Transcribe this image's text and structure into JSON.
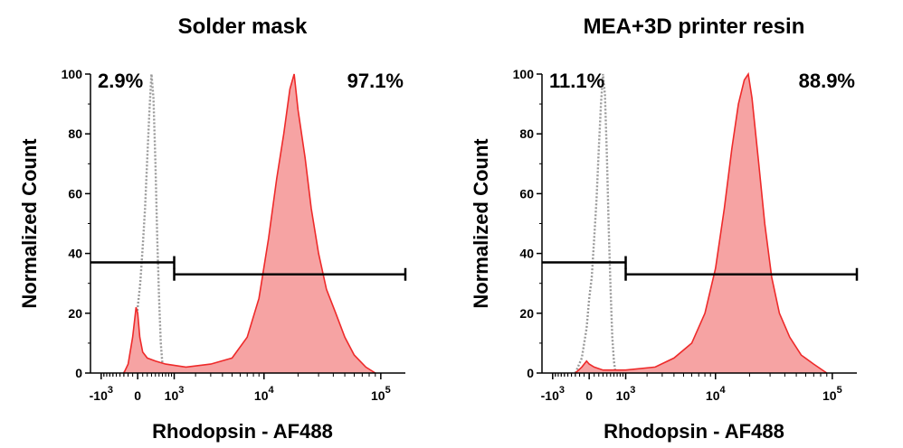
{
  "chart_data": [
    {
      "type": "area",
      "title": "Solder mask",
      "xlabel": "Rhodopsin - AF488",
      "ylabel": "Normalized Count",
      "x_scale": "biexponential",
      "ylim": [
        0,
        100
      ],
      "yticks": [
        "0",
        "20",
        "40",
        "60",
        "80",
        "100"
      ],
      "xticks": [
        {
          "label": "-10",
          "exp": "3",
          "value": -1000
        },
        {
          "label": "0",
          "exp": "",
          "value": 0
        },
        {
          "label": "10",
          "exp": "3",
          "value": 1000
        },
        {
          "label": "10",
          "exp": "4",
          "value": 10000
        },
        {
          "label": "10",
          "exp": "5",
          "value": 100000
        }
      ],
      "gates": [
        {
          "label": "2.9%",
          "percent": 2.9,
          "range": [
            "-",
            1000
          ],
          "y": 37
        },
        {
          "label": "97.1%",
          "percent": 97.1,
          "range": [
            1000,
            "+"
          ],
          "y": 33
        }
      ],
      "series": [
        {
          "style": "dotted",
          "color": "#999999",
          "points": [
            [
              -300,
              0
            ],
            [
              -150,
              3
            ],
            [
              -50,
              10
            ],
            [
              0,
              22
            ],
            [
              50,
              30
            ],
            [
              100,
              42
            ],
            [
              150,
              55
            ],
            [
              200,
              72
            ],
            [
              250,
              88
            ],
            [
              300,
              100
            ],
            [
              350,
              92
            ],
            [
              400,
              70
            ],
            [
              450,
              45
            ],
            [
              500,
              25
            ],
            [
              550,
              10
            ],
            [
              600,
              3
            ],
            [
              650,
              0
            ]
          ]
        },
        {
          "style": "filled",
          "color": "#ee2a2a",
          "fill": "#f6a3a3",
          "points": [
            [
              -300,
              0
            ],
            [
              -200,
              3
            ],
            [
              -100,
              12
            ],
            [
              -30,
              22
            ],
            [
              0,
              20
            ],
            [
              40,
              12
            ],
            [
              100,
              7
            ],
            [
              200,
              5
            ],
            [
              400,
              4
            ],
            [
              700,
              3
            ],
            [
              1500,
              2
            ],
            [
              3000,
              3
            ],
            [
              5000,
              5
            ],
            [
              7000,
              12
            ],
            [
              9000,
              25
            ],
            [
              11000,
              45
            ],
            [
              13000,
              65
            ],
            [
              15000,
              80
            ],
            [
              17000,
              95
            ],
            [
              18500,
              100
            ],
            [
              20000,
              88
            ],
            [
              23000,
              72
            ],
            [
              26000,
              55
            ],
            [
              30000,
              40
            ],
            [
              35000,
              28
            ],
            [
              42000,
              20
            ],
            [
              50000,
              12
            ],
            [
              60000,
              6
            ],
            [
              75000,
              2
            ],
            [
              90000,
              0
            ]
          ]
        }
      ]
    },
    {
      "type": "area",
      "title": "MEA+3D printer resin",
      "xlabel": "Rhodopsin - AF488",
      "ylabel": "Normalized Count",
      "x_scale": "biexponential",
      "ylim": [
        0,
        100
      ],
      "yticks": [
        "0",
        "20",
        "40",
        "60",
        "80",
        "100"
      ],
      "xticks": [
        {
          "label": "-10",
          "exp": "3",
          "value": -1000
        },
        {
          "label": "0",
          "exp": "",
          "value": 0
        },
        {
          "label": "10",
          "exp": "3",
          "value": 1000
        },
        {
          "label": "10",
          "exp": "4",
          "value": 10000
        },
        {
          "label": "10",
          "exp": "5",
          "value": 100000
        }
      ],
      "gates": [
        {
          "label": "11.1%",
          "percent": 11.1,
          "range": [
            "-",
            1000
          ],
          "y": 37
        },
        {
          "label": "88.9%",
          "percent": 88.9,
          "range": [
            1000,
            "+"
          ],
          "y": 33
        }
      ],
      "series": [
        {
          "style": "dotted",
          "color": "#999999",
          "points": [
            [
              -300,
              0
            ],
            [
              -150,
              5
            ],
            [
              -50,
              15
            ],
            [
              0,
              25
            ],
            [
              50,
              32
            ],
            [
              100,
              45
            ],
            [
              150,
              58
            ],
            [
              200,
              75
            ],
            [
              250,
              90
            ],
            [
              300,
              100
            ],
            [
              350,
              93
            ],
            [
              400,
              72
            ],
            [
              450,
              48
            ],
            [
              500,
              28
            ],
            [
              550,
              12
            ],
            [
              600,
              4
            ],
            [
              650,
              0
            ]
          ]
        },
        {
          "style": "filled",
          "color": "#ee2a2a",
          "fill": "#f6a3a3",
          "points": [
            [
              -300,
              0
            ],
            [
              -150,
              2
            ],
            [
              -50,
              4
            ],
            [
              0,
              3
            ],
            [
              100,
              2
            ],
            [
              300,
              1
            ],
            [
              1000,
              1
            ],
            [
              2500,
              2
            ],
            [
              4000,
              5
            ],
            [
              6000,
              10
            ],
            [
              8000,
              20
            ],
            [
              10000,
              35
            ],
            [
              12000,
              55
            ],
            [
              14000,
              75
            ],
            [
              16000,
              90
            ],
            [
              18000,
              98
            ],
            [
              19500,
              100
            ],
            [
              21000,
              92
            ],
            [
              24000,
              70
            ],
            [
              27000,
              50
            ],
            [
              31000,
              32
            ],
            [
              36000,
              20
            ],
            [
              44000,
              12
            ],
            [
              55000,
              6
            ],
            [
              70000,
              3
            ],
            [
              90000,
              0
            ]
          ]
        }
      ]
    }
  ]
}
